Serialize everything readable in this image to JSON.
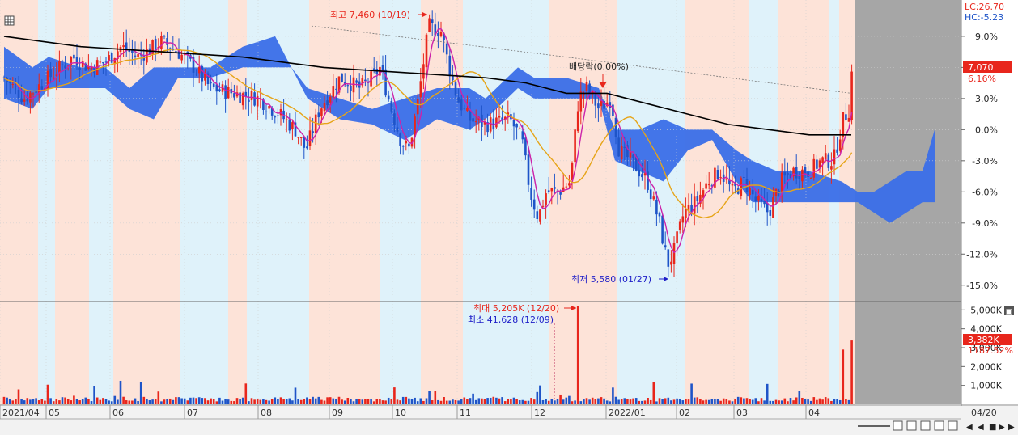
{
  "chart_data": {
    "type": "candlestick",
    "x_axis": {
      "labels": [
        "2021/04",
        "05",
        "06",
        "07",
        "08",
        "09",
        "10",
        "11",
        "12",
        "2022/01",
        "02",
        "03",
        "04"
      ],
      "right_label": "04/20"
    },
    "price_axis": {
      "unit": "%",
      "ticks": [
        "9.0%",
        "6.0%",
        "3.0%",
        "0.0%",
        "-3.0%",
        "-6.0%",
        "-9.0%",
        "-12.0%",
        "-15.0%"
      ],
      "tick_values": [
        9,
        6,
        3,
        0,
        -3,
        -6,
        -9,
        -12,
        -15
      ],
      "ylim": [
        -16.5,
        12.5
      ]
    },
    "volume_axis": {
      "ticks": [
        "5,000K",
        "4,000K",
        "3,000K",
        "2,000K",
        "1,000K"
      ],
      "tick_values": [
        5000,
        4000,
        3000,
        2000,
        1000
      ],
      "ylim": [
        0,
        5400
      ]
    },
    "indicators": {
      "lc": "LC:26.70",
      "hc": "HC:-5.23"
    },
    "current": {
      "price": "7,070",
      "change": "6.16%",
      "volume": "3,382K",
      "volume_change": "1187.52%"
    },
    "annotations": {
      "high": "최고 7,460 (10/19)",
      "low": "최저 5,580 (01/27)",
      "dividend": "배당락(0.00%)",
      "max_volume": "최대 5,205K (12/20)",
      "min_volume": "최소 41,628 (12/09)"
    },
    "series": [
      {
        "name": "Close",
        "key_points": [
          {
            "date": "2021-04",
            "y": 5.0
          },
          {
            "date": "2021-05",
            "y": 6.5
          },
          {
            "date": "2021-06",
            "y": 8.0
          },
          {
            "date": "2021-07",
            "y": 4.5
          },
          {
            "date": "2021-08",
            "y": 2.5
          },
          {
            "date": "2021-09",
            "y": 1.5
          },
          {
            "date": "2021-10",
            "y": 8.0
          },
          {
            "date": "2021-11",
            "y": 1.0
          },
          {
            "date": "2021-12",
            "y": -8.5
          },
          {
            "date": "2022-01",
            "y": -5.0
          },
          {
            "date": "2022-02",
            "y": -8.5
          },
          {
            "date": "2022-03",
            "y": -7.0
          },
          {
            "date": "2022-04",
            "y": 6.16
          }
        ]
      }
    ],
    "colors": {
      "up": "#e8261c",
      "down": "#1e54c8",
      "ma_short": "#cc22aa",
      "ma_mid": "#e6a417",
      "ma_long": "#000000",
      "cloud": "#3a6ee8"
    }
  }
}
